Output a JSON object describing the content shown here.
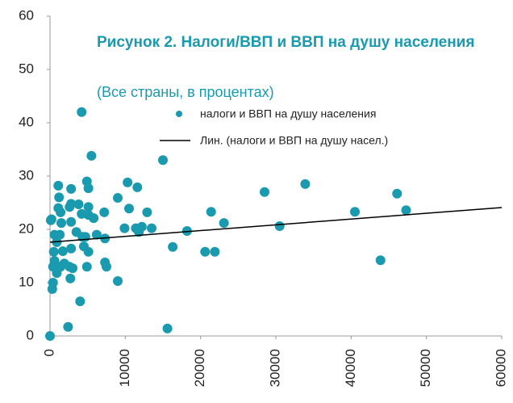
{
  "chart_data": {
    "type": "scatter",
    "title": "Рисунок 2. Налоги/ВВП и ВВП на душу населения",
    "subtitle": "(Все страны, в процентах)",
    "series": [
      {
        "name": "налоги и ВВП на душу населения",
        "color": "#1a9aae",
        "x": [
          0,
          100,
          200,
          400,
          300,
          400,
          500,
          600,
          600,
          900,
          900,
          1100,
          1100,
          1200,
          1300,
          1400,
          1400,
          1500,
          1700,
          1900,
          2400,
          2600,
          2600,
          2700,
          2800,
          2800,
          2800,
          2800,
          3000,
          3500,
          3800,
          4000,
          4200,
          4200,
          4300,
          4500,
          4700,
          4900,
          4900,
          5100,
          5100,
          5100,
          5100,
          5500,
          5800,
          6200,
          7200,
          7300,
          7300,
          7500,
          9000,
          9000,
          9900,
          10300,
          10500,
          11400,
          11600,
          11800,
          12200,
          12900,
          13500,
          15000,
          15600,
          16300,
          18200,
          20600,
          21400,
          21900,
          23100,
          28500,
          30500,
          33900,
          40500,
          43900,
          46100,
          47300
        ],
        "values": [
          0,
          21.7,
          21.9,
          13,
          8.8,
          10,
          15.8,
          19,
          14.1,
          17.6,
          11.8,
          28.2,
          24,
          26,
          19,
          23.2,
          13,
          21.2,
          15.9,
          13.6,
          1.7,
          24.2,
          13,
          10.8,
          27.6,
          24.8,
          21.4,
          16.4,
          12.7,
          19.5,
          24.7,
          6.5,
          42,
          22.9,
          18.6,
          16.8,
          18.6,
          29,
          13,
          27.7,
          24.2,
          22.7,
          15.8,
          33.8,
          22.1,
          19,
          23.2,
          18.3,
          13.8,
          13,
          25.9,
          10.3,
          20.2,
          28.8,
          23.9,
          20.2,
          27.9,
          19.5,
          20.5,
          23.2,
          20.2,
          33,
          1.4,
          16.7,
          19.7,
          15.8,
          23.3,
          15.8,
          21.2,
          27,
          20.6,
          28.5,
          23.3,
          14.2,
          26.7,
          23.6
        ]
      }
    ],
    "trendline": {
      "name": "Лин. (налоги и ВВП на душу насел.)",
      "color": "#000000",
      "x": [
        0,
        60000
      ],
      "values": [
        17.6,
        24.1
      ]
    },
    "xlim": [
      0,
      60000
    ],
    "xticks": [
      0,
      10000,
      20000,
      30000,
      40000,
      50000,
      60000
    ],
    "ylim": [
      0,
      60
    ],
    "yticks": [
      0,
      10,
      20,
      30,
      40,
      50,
      60
    ],
    "grid": false
  }
}
